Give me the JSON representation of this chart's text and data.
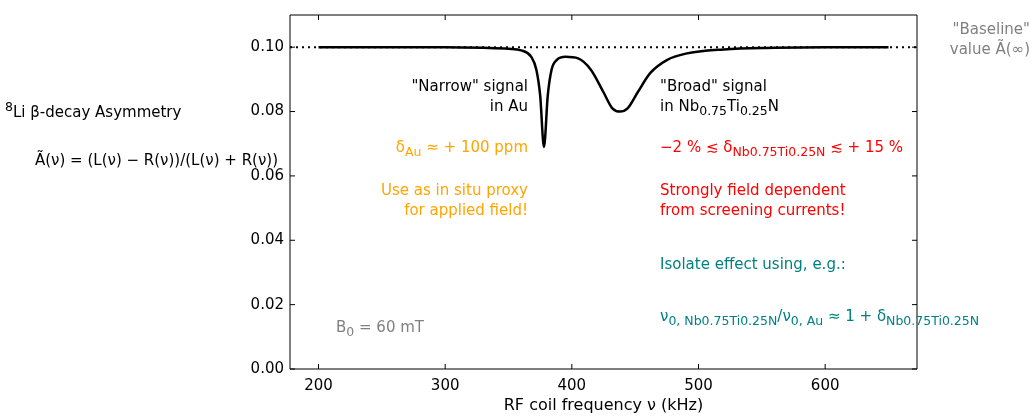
{
  "chart_data": {
    "type": "line",
    "xlabel": "RF coil frequency ν (kHz)",
    "ylabel": "$^{8}$Li β-decay Asymmetry",
    "x": [
      200,
      250,
      300,
      330,
      350,
      360,
      368,
      372,
      375,
      378,
      381,
      384,
      388,
      395,
      405,
      415,
      425,
      432,
      438,
      444,
      452,
      462,
      475,
      490,
      520,
      560,
      600,
      650
    ],
    "series": [
      {
        "color": "#000000",
        "values": [
          0.1,
          0.1,
          0.1,
          0.0998,
          0.0995,
          0.099,
          0.097,
          0.093,
          0.085,
          0.069,
          0.085,
          0.093,
          0.096,
          0.097,
          0.0965,
          0.093,
          0.086,
          0.081,
          0.08,
          0.081,
          0.086,
          0.092,
          0.096,
          0.098,
          0.0993,
          0.0998,
          0.1,
          0.1
        ]
      }
    ],
    "xlim": [
      177.5,
      672.5
    ],
    "xticks": [
      200,
      300,
      400,
      500,
      600
    ],
    "ylim": [
      0,
      0.11
    ],
    "yticks": [
      {
        "value": 0,
        "label": "0.00"
      },
      {
        "value": 0.02,
        "label": "0.02"
      },
      {
        "value": 0.04,
        "label": "0.04"
      },
      {
        "value": 0.06,
        "label": "0.06"
      },
      {
        "value": 0.08,
        "label": "0.08"
      },
      {
        "value": 0.1,
        "label": "0.10"
      }
    ],
    "ref_lines": [
      {
        "axis": "y",
        "value": 0.1,
        "label": "\"Baseline\" value Ã(∞)",
        "color": "#000000",
        "line_style": "dotted"
      }
    ],
    "annotations": [
      "\"Narrow\" signal\nin Au",
      "δ$_{Au}$ ≈ + 100 ppm",
      "Use as in situ proxy\nfor applied field!",
      "B$_{0}$ = 60 mT",
      "\"Broad\" signal\nin Nb$_{0.75}$Ti$_{0.25}$N",
      "−2 % ≲ δ$_{Nb0.75Ti0.25N}$ ≲ + 15 %",
      "Strongly field dependent\nfrom screening currents!",
      "Isolate effect using, e.g.:",
      "ν$_{0, Nb0.75Ti0.25N}$/ν$_{0, Au}$ ≈ 1 + δ$_{Nb0.75Ti0.25N}$",
      "Ã(ν) = (L(ν) − R(ν))/(L(ν) + R(ν))"
    ],
    "marker": "none",
    "line_style": "solid",
    "grid": false,
    "legend": false
  }
}
